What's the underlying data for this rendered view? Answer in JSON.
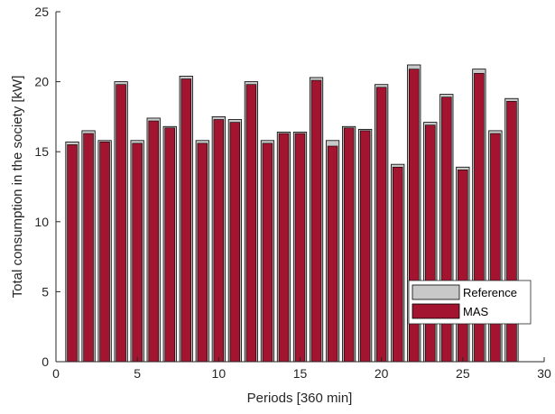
{
  "chart_data": {
    "type": "bar",
    "xlabel": "Periods [360 min]",
    "ylabel": "Total consumption in the society [kW]",
    "xlim": [
      0,
      30
    ],
    "ylim": [
      0,
      25
    ],
    "xticks": [
      0,
      5,
      10,
      15,
      20,
      25,
      30
    ],
    "yticks": [
      0,
      5,
      10,
      15,
      20,
      25
    ],
    "grid": false,
    "legend_position": "lower-right",
    "categories": [
      1,
      2,
      3,
      4,
      5,
      6,
      7,
      8,
      9,
      10,
      11,
      12,
      13,
      14,
      15,
      16,
      17,
      18,
      19,
      20,
      21,
      22,
      23,
      24,
      25,
      26,
      27,
      28
    ],
    "series": [
      {
        "name": "Reference",
        "color": "#c8c8c8",
        "values": [
          15.7,
          16.5,
          15.8,
          20.0,
          15.8,
          17.4,
          16.8,
          20.4,
          15.8,
          17.5,
          17.3,
          20.0,
          15.8,
          16.4,
          16.4,
          20.3,
          15.8,
          16.8,
          16.6,
          19.8,
          14.1,
          21.2,
          17.1,
          19.1,
          13.9,
          20.9,
          16.5,
          18.8
        ]
      },
      {
        "name": "MAS",
        "color": "#a2142f",
        "values": [
          15.5,
          16.3,
          15.7,
          19.8,
          15.6,
          17.2,
          16.7,
          20.2,
          15.6,
          17.3,
          17.1,
          19.8,
          15.6,
          16.3,
          16.3,
          20.1,
          15.4,
          16.7,
          16.5,
          19.6,
          13.9,
          20.9,
          16.9,
          18.9,
          13.7,
          20.6,
          16.3,
          18.6
        ]
      }
    ]
  }
}
